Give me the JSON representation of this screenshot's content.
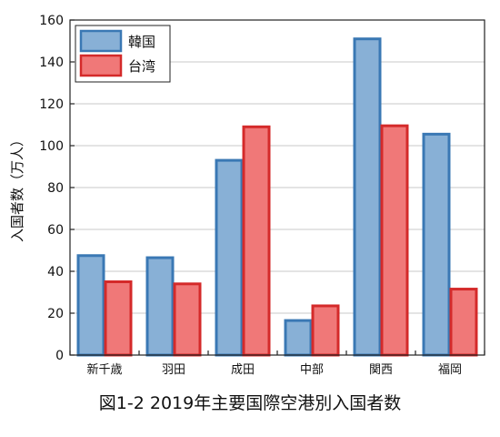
{
  "caption": "図1-2 2019年主要国際空港別入国者数",
  "chart_data": {
    "type": "bar",
    "ylabel": "入国者数（万人）",
    "ylim": [
      0,
      160
    ],
    "yticks": [
      0,
      20,
      40,
      60,
      80,
      100,
      120,
      140,
      160
    ],
    "grid": true,
    "legend_position": "top-left",
    "categories": [
      "新千歳",
      "羽田",
      "成田",
      "中部",
      "関西",
      "福岡"
    ],
    "series": [
      {
        "name": "韓国",
        "values": [
          47.5,
          46.5,
          93,
          16.5,
          151,
          105.5
        ],
        "fill": "#88b0d6",
        "stroke": "#3a78b4"
      },
      {
        "name": "台湾",
        "values": [
          35,
          34,
          109,
          23.5,
          109.5,
          31.5
        ],
        "fill": "#f07878",
        "stroke": "#d42a2a"
      }
    ]
  }
}
